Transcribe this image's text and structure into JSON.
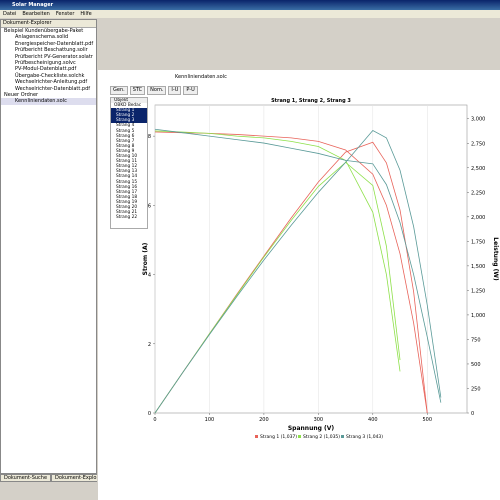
{
  "window": {
    "title": "Solar Manager",
    "menu": [
      "Datei",
      "Bearbeiten",
      "Fenster",
      "Hilfe"
    ]
  },
  "explorer": {
    "title": "Dokument-Explorer",
    "items": [
      "Beispiel Kundenübergabe-Paket",
      "Anlagenschema.solid",
      "Energiespeicher-Datenblatt.pdf",
      "Prüfbericht Beschattung.solir",
      "Prüfbericht PV-Generator.solatr",
      "Prüfbescheinigung.solvc",
      "PV-Modul-Datenblatt.pdf",
      "Übergabe-Checkliste.solchk",
      "Wechselrichter-Anleitung.pdf",
      "Wechselrichter-Datenblatt.pdf",
      "Neuer Ordner",
      "Kennliniendaten.solc"
    ],
    "tabs": [
      "Dokument-Suche",
      "Dokument-Explorer"
    ]
  },
  "document_tab": "Kennliniendaten.solc",
  "toolbar": [
    "Gen.",
    "STC",
    "Nom.",
    "I-U",
    "P-U"
  ],
  "objects": {
    "header": "Objekt",
    "root": "OBKD Bedac",
    "items": [
      "Strang 1",
      "Strang 2",
      "Strang 3",
      "Strang 4",
      "Strang 5",
      "Strang 6",
      "Strang 7",
      "Strang 8",
      "Strang 9",
      "Strang 10",
      "Strang 11",
      "Strang 12",
      "Strang 13",
      "Strang 14",
      "Strang 15",
      "Strang 16",
      "Strang 17",
      "Strang 18",
      "Strang 19",
      "Strang 20",
      "Strang 21",
      "Strang 22"
    ]
  },
  "chart_data": {
    "type": "line",
    "title": "Strang 1, Strang 2, Strang 3",
    "x_label": "Spannung (V)",
    "y_label": "Strom (A)",
    "y2_label": "Leistung (W)",
    "x": [
      0,
      50,
      100,
      150,
      200,
      250,
      300,
      350,
      400,
      425,
      450,
      475,
      500,
      525
    ],
    "xlim": [
      0,
      573
    ],
    "xticks": [
      0,
      100,
      200,
      300,
      400,
      500
    ],
    "ylim": [
      0,
      8.9
    ],
    "yticks": [
      0,
      2,
      4,
      6,
      8
    ],
    "y2lim": [
      0,
      3140
    ],
    "y2ticks": [
      0,
      250,
      500,
      750,
      {
        "value": 1000,
        "label": "1,000"
      },
      {
        "value": 1250,
        "label": "1,250"
      },
      {
        "value": 1500,
        "label": "1,500"
      },
      {
        "value": 1750,
        "label": "1,750"
      },
      {
        "value": 2000,
        "label": "2,000"
      },
      {
        "value": 2250,
        "label": "2,250"
      },
      {
        "value": 2500,
        "label": "2,500"
      },
      {
        "value": 2750,
        "label": "2,750"
      },
      {
        "value": 3000,
        "label": "3,000"
      }
    ],
    "grid": true,
    "series": [
      {
        "name": "Strang 1 (1,037)",
        "color": "#e8635a",
        "current": [
          8.12,
          8.1,
          8.08,
          8.05,
          8.0,
          7.95,
          7.85,
          7.6,
          6.9,
          6.0,
          4.6,
          2.6,
          0,
          null
        ],
        "power": [
          0,
          405,
          808,
          1208,
          1600,
          1988,
          2355,
          2660,
          2760,
          2550,
          2070,
          1235,
          0,
          null
        ]
      },
      {
        "name": "Strang 2 (1,035)",
        "color": "#8ee04a",
        "current": [
          8.15,
          8.12,
          8.08,
          8.0,
          7.95,
          7.85,
          7.7,
          7.3,
          5.8,
          4.0,
          1.2,
          null,
          null,
          null
        ],
        "power": [
          0,
          406,
          808,
          1200,
          1590,
          1963,
          2310,
          2555,
          2320,
          1700,
          540,
          null,
          null,
          null
        ]
      },
      {
        "name": "Strang 3 (1,043)",
        "color": "#5a9a98",
        "current": [
          8.2,
          8.1,
          8.0,
          7.9,
          7.8,
          7.65,
          7.5,
          7.3,
          7.2,
          6.6,
          5.5,
          4.0,
          2.2,
          0.3
        ],
        "power": [
          0,
          405,
          800,
          1185,
          1560,
          1913,
          2250,
          2555,
          2880,
          2805,
          2475,
          1900,
          1100,
          158
        ]
      }
    ]
  }
}
